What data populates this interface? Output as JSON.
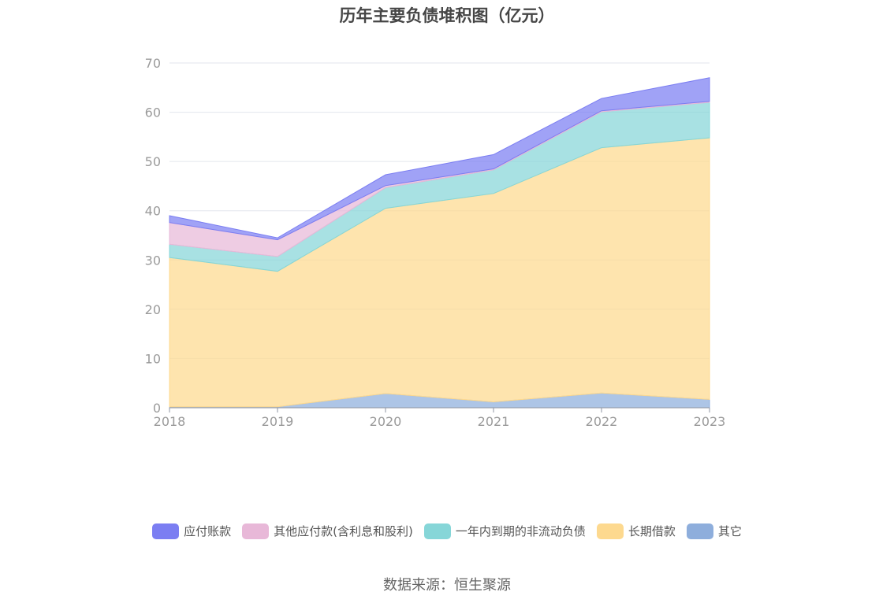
{
  "chart_data": {
    "type": "area",
    "stacked": true,
    "title": "历年主要负债堆积图（亿元）",
    "x": [
      "2018",
      "2019",
      "2020",
      "2021",
      "2022",
      "2023"
    ],
    "ylim": [
      0,
      70
    ],
    "yticks": [
      0,
      10,
      20,
      30,
      40,
      50,
      60,
      70
    ],
    "grid": true,
    "legend_position": "bottom",
    "series": [
      {
        "name": "其它",
        "color": "#8eaedc",
        "values": [
          0.2,
          0.2,
          2.9,
          1.2,
          3.0,
          1.7
        ]
      },
      {
        "name": "长期借款",
        "color": "#fdd98f",
        "values": [
          30.3,
          27.5,
          37.6,
          42.3,
          49.8,
          53.1
        ]
      },
      {
        "name": "一年内到期的非流动负债",
        "color": "#86d6d8",
        "values": [
          2.7,
          3.0,
          4.2,
          4.8,
          7.3,
          7.2
        ]
      },
      {
        "name": "其他应付款(含利息和股利)",
        "color": "#e8b8d8",
        "values": [
          4.4,
          3.4,
          0.4,
          0.2,
          0.2,
          0.2
        ]
      },
      {
        "name": "应付账款",
        "color": "#7b7ef2",
        "values": [
          1.4,
          0.4,
          2.2,
          2.9,
          2.5,
          4.8
        ]
      }
    ],
    "legend_order": [
      "应付账款",
      "其他应付款(含利息和股利)",
      "一年内到期的非流动负债",
      "长期借款",
      "其它"
    ]
  },
  "source": "数据来源：恒生聚源"
}
